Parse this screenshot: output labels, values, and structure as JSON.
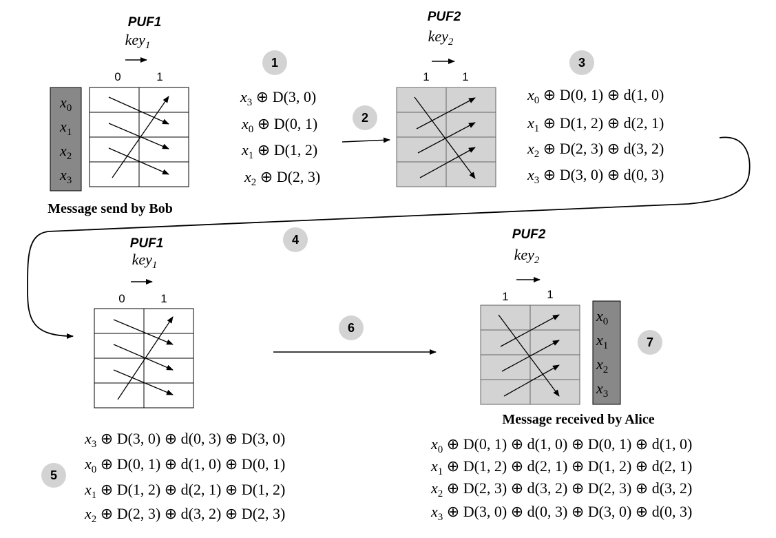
{
  "pufs": {
    "top_left": {
      "name": "PUF1",
      "key_base": "key",
      "key_sub": "1",
      "bit_left": "0",
      "bit_right": "1"
    },
    "top_right": {
      "name": "PUF2",
      "key_base": "key",
      "key_sub": "2",
      "bit_left": "1",
      "bit_right": "1"
    },
    "bottom_left": {
      "name": "PUF1",
      "key_base": "key",
      "key_sub": "1",
      "bit_left": "0",
      "bit_right": "1"
    },
    "bottom_right": {
      "name": "PUF2",
      "key_base": "key",
      "key_sub": "2",
      "bit_left": "1",
      "bit_right": "1"
    }
  },
  "message_vars": [
    {
      "base": "x",
      "sub": "0"
    },
    {
      "base": "x",
      "sub": "1"
    },
    {
      "base": "x",
      "sub": "2"
    },
    {
      "base": "x",
      "sub": "3"
    }
  ],
  "captions": {
    "sent": "Message send by Bob",
    "received": "Message received by Alice"
  },
  "steps": [
    "1",
    "2",
    "3",
    "4",
    "5",
    "6",
    "7"
  ],
  "expr_block_1": [
    {
      "var": "x",
      "sub": "3",
      "rest": " ⊕ D(3, 0)"
    },
    {
      "var": "x",
      "sub": "0",
      "rest": " ⊕ D(0, 1)"
    },
    {
      "var": "x",
      "sub": "1",
      "rest": " ⊕ D(1, 2)"
    },
    {
      "var": "x",
      "sub": "2",
      "rest": " ⊕ D(2, 3)"
    }
  ],
  "expr_block_3": [
    {
      "var": "x",
      "sub": "0",
      "rest": " ⊕ D(0, 1) ⊕ d(1, 0)"
    },
    {
      "var": "x",
      "sub": "1",
      "rest": " ⊕ D(1, 2) ⊕ d(2, 1)"
    },
    {
      "var": "x",
      "sub": "2",
      "rest": " ⊕ D(2, 3) ⊕ d(3, 2)"
    },
    {
      "var": "x",
      "sub": "3",
      "rest": " ⊕ D(3, 0) ⊕ d(0, 3)"
    }
  ],
  "expr_block_5": [
    {
      "var": "x",
      "sub": "3",
      "rest": " ⊕ D(3, 0) ⊕ d(0, 3) ⊕ D(3, 0)"
    },
    {
      "var": "x",
      "sub": "0",
      "rest": " ⊕ D(0, 1) ⊕ d(1, 0) ⊕ D(0, 1)"
    },
    {
      "var": "x",
      "sub": "1",
      "rest": " ⊕ D(1, 2) ⊕ d(2, 1) ⊕ D(1, 2)"
    },
    {
      "var": "x",
      "sub": "2",
      "rest": " ⊕ D(2, 3) ⊕ d(3, 2) ⊕ D(2, 3)"
    }
  ],
  "expr_block_7": [
    {
      "var": "x",
      "sub": "0",
      "rest": " ⊕ D(0, 1) ⊕ d(1, 0) ⊕ D(0, 1) ⊕ d(1, 0)"
    },
    {
      "var": "x",
      "sub": "1",
      "rest": " ⊕ D(1, 2) ⊕ d(2, 1) ⊕ D(1, 2) ⊕ d(2, 1)"
    },
    {
      "var": "x",
      "sub": "2",
      "rest": " ⊕ D(2, 3) ⊕ d(3, 2) ⊕ D(2, 3) ⊕ d(3, 2)"
    },
    {
      "var": "x",
      "sub": "3",
      "rest": " ⊕ D(3, 0) ⊕ d(0, 3) ⊕ D(3, 0) ⊕ d(0, 3)"
    }
  ],
  "colors": {
    "message_column": "#888888",
    "puf2_fill": "#d3d3d3",
    "puf1_fill": "#ffffff",
    "step_circle": "#d3d3d3",
    "stroke": "#000000"
  }
}
